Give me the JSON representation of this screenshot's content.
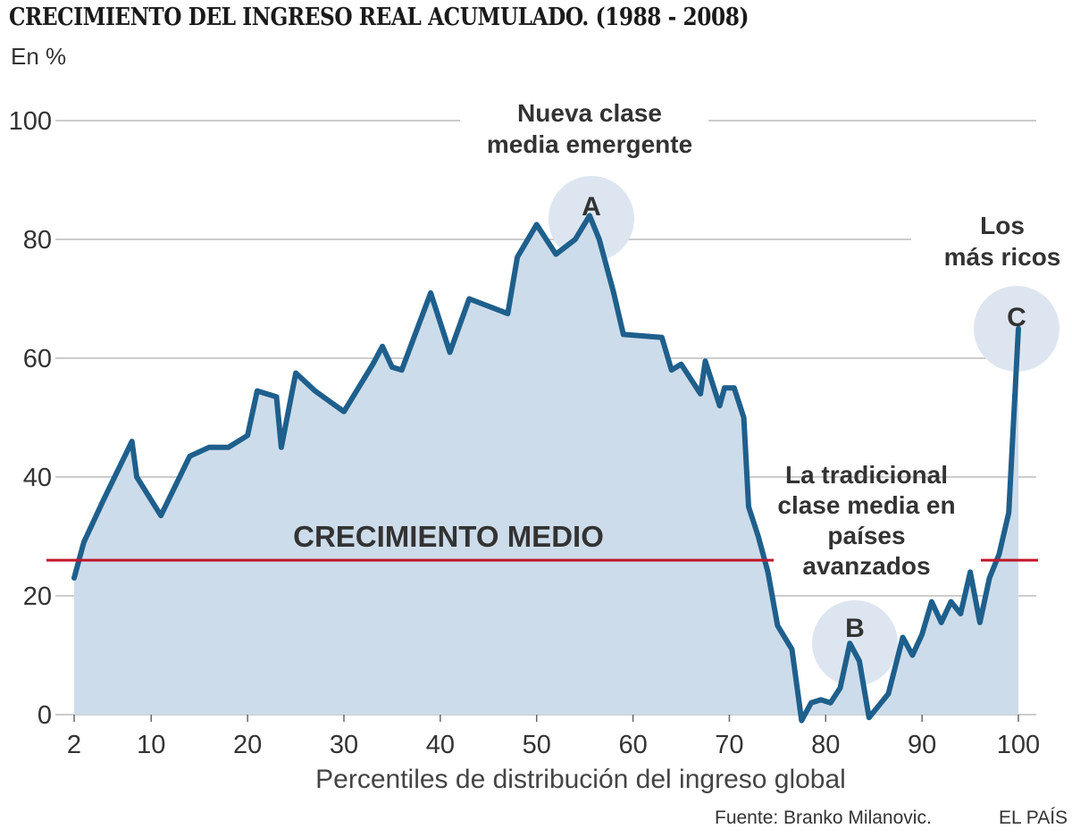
{
  "header": {
    "title": "CRECIMIENTO DEL INGRESO REAL ACUMULADO. (1988 - 2008)",
    "unit": "En %"
  },
  "footer": {
    "source": "Fuente: Branko Milanovic.",
    "brand": "EL PAÍS"
  },
  "colors": {
    "line": "#1e5f8c",
    "fill": "#cddcea",
    "average": "#c0182a",
    "grid": "#bbbbbb",
    "highlight": "#dde6f0"
  },
  "chart_data": {
    "type": "area",
    "title": "CRECIMIENTO DEL INGRESO REAL ACUMULADO. (1988 - 2008)",
    "ylabel": "En %",
    "xlabel": "Percentiles de distribución del ingreso global",
    "xlim": [
      2,
      100
    ],
    "ylim": [
      0,
      100
    ],
    "grid": true,
    "x_ticks": [
      2,
      10,
      20,
      30,
      40,
      50,
      60,
      70,
      80,
      90,
      100
    ],
    "y_ticks": [
      0,
      20,
      40,
      60,
      80,
      100
    ],
    "average_line": {
      "label": "CRECIMIENTO MEDIO",
      "value": 26
    },
    "series": [
      {
        "x": [
          2,
          3,
          5,
          8,
          8.5,
          11,
          14,
          16,
          18,
          20,
          21,
          23,
          23.5,
          25,
          27,
          30,
          33,
          34,
          35,
          36,
          39,
          41,
          43,
          47,
          48,
          50,
          52,
          54,
          55.5,
          56.5,
          58,
          59,
          63,
          64,
          65,
          67,
          67.5,
          69,
          69.5,
          70.5,
          71.5,
          72,
          73,
          74,
          75,
          76.5,
          77.5,
          78.5,
          79.5,
          80.5,
          81.5,
          82.5,
          83.5,
          84.5,
          85.5,
          86.5,
          88,
          89,
          90,
          91,
          92,
          93,
          94,
          95,
          96,
          97,
          98,
          99,
          100
        ],
        "y": [
          23,
          29,
          36,
          46,
          40,
          33.5,
          43.5,
          45,
          45,
          47,
          54.5,
          53.5,
          45,
          57.5,
          54.5,
          51,
          59,
          62,
          58.5,
          58,
          71,
          61,
          70,
          67.5,
          77,
          82.5,
          77.5,
          80,
          84,
          80,
          71,
          64,
          63.5,
          58,
          59,
          54,
          59.5,
          52,
          55,
          55,
          50,
          35,
          30,
          24,
          15,
          11,
          -1,
          2,
          2.5,
          2,
          4.5,
          12,
          9,
          -0.5,
          1.5,
          3.5,
          13,
          10,
          13.5,
          19,
          15.5,
          19,
          17,
          24,
          15.5,
          23,
          27,
          34,
          65
        ]
      }
    ],
    "annotations": [
      {
        "marker": "A",
        "lines": [
          "Nueva clase",
          "media emergente"
        ]
      },
      {
        "marker": "B",
        "lines": [
          "La tradicional",
          "clase media en",
          "países",
          "avanzados"
        ]
      },
      {
        "marker": "C",
        "lines": [
          "Los",
          "más ricos"
        ]
      }
    ]
  }
}
